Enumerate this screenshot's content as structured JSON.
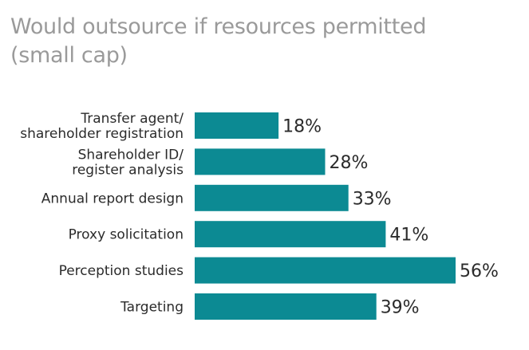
{
  "chart_data": {
    "type": "bar",
    "orientation": "horizontal",
    "title": [
      "Would outsource if resources permitted",
      "(small cap)"
    ],
    "categories": [
      [
        "Transfer agent/",
        "shareholder registration"
      ],
      [
        "Shareholder ID/",
        "register analysis"
      ],
      [
        "Annual report design"
      ],
      [
        "Proxy solicitation"
      ],
      [
        "Perception studies"
      ],
      [
        "Targeting"
      ]
    ],
    "values": [
      18,
      28,
      33,
      41,
      56,
      39
    ],
    "value_labels": [
      "18%",
      "28%",
      "33%",
      "41%",
      "56%",
      "39%"
    ],
    "unit": "%",
    "xlim": [
      0,
      56
    ],
    "grid": false,
    "legend": "none",
    "bar_color": "#0c8a93"
  }
}
